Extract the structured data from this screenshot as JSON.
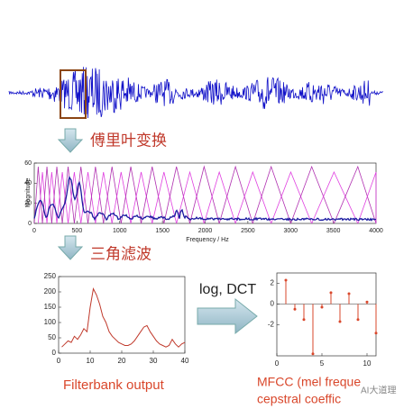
{
  "steps": [
    "傅里叶变换",
    "三角滤波"
  ],
  "arrow_label": "log, DCT",
  "watermark": "AI大道理",
  "spectrum": {
    "xlabel": "Frequency / Hz",
    "ylabel": "Magnitude",
    "xlim": [
      0,
      4000
    ],
    "xticks": [
      0,
      500,
      1000,
      1500,
      2000,
      2500,
      3000,
      3500,
      4000
    ],
    "ylim": [
      0,
      60
    ],
    "yticks": [
      0,
      20,
      40,
      60
    ]
  },
  "filterbank": {
    "type": "line",
    "caption": "Filterbank output",
    "color": "#c0392b",
    "xlim": [
      0,
      40
    ],
    "xticks": [
      0,
      10,
      20,
      30,
      40
    ],
    "ylim": [
      0,
      250
    ],
    "yticks": [
      0,
      50,
      100,
      150,
      200,
      250
    ],
    "x": [
      1,
      2,
      3,
      4,
      5,
      6,
      7,
      8,
      9,
      10,
      11,
      12,
      13,
      14,
      15,
      16,
      17,
      18,
      19,
      20,
      21,
      22,
      23,
      24,
      25,
      26,
      27,
      28,
      29,
      30,
      31,
      32,
      33,
      34,
      35,
      36,
      37,
      38,
      39,
      40
    ],
    "values": [
      20,
      30,
      40,
      35,
      55,
      45,
      60,
      80,
      70,
      150,
      210,
      190,
      160,
      120,
      100,
      70,
      55,
      45,
      35,
      30,
      25,
      25,
      30,
      40,
      55,
      70,
      85,
      90,
      70,
      55,
      40,
      30,
      25,
      20,
      25,
      45,
      30,
      20,
      30,
      35
    ]
  },
  "mfcc": {
    "type": "stem",
    "caption": [
      "MFCC (mel freque",
      "cepstral coeffic"
    ],
    "color": "#d9472b",
    "xlim": [
      0,
      11
    ],
    "xticks": [
      0,
      5,
      10
    ],
    "ylim": [
      -5,
      3
    ],
    "yticks": [
      -2,
      0,
      2
    ],
    "x": [
      1,
      2,
      3,
      4,
      5,
      6,
      7,
      8,
      9,
      10,
      11
    ],
    "values": [
      2.3,
      -0.5,
      -1.5,
      -4.8,
      -0.3,
      1.1,
      -1.7,
      1.0,
      -1.5,
      0.2,
      -2.8
    ]
  }
}
